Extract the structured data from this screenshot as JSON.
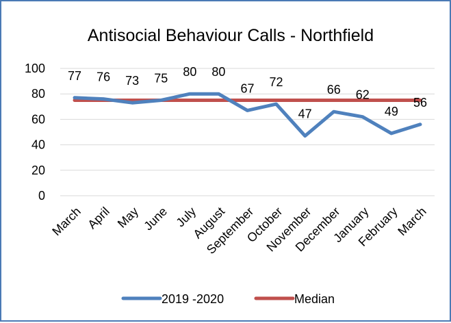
{
  "chart_data": {
    "type": "line",
    "title": "Antisocial Behaviour Calls - Northfield",
    "categories": [
      "March",
      "April",
      "May",
      "June",
      "July",
      "August",
      "September",
      "October",
      "November",
      "December",
      "January",
      "February",
      "March"
    ],
    "series": [
      {
        "name": "2019 -2020",
        "values": [
          77,
          76,
          73,
          75,
          80,
          80,
          67,
          72,
          47,
          66,
          62,
          49,
          56
        ],
        "color": "#4f81bd"
      },
      {
        "name": "Median",
        "values": [
          75,
          75,
          75,
          75,
          75,
          75,
          75,
          75,
          75,
          75,
          75,
          75,
          75
        ],
        "color": "#c0504d"
      }
    ],
    "data_labels_series": "2019 -2020",
    "ylim": [
      0,
      100
    ],
    "yticks": [
      0,
      20,
      40,
      60,
      80,
      100
    ],
    "grid": true,
    "legend_position": "bottom"
  }
}
